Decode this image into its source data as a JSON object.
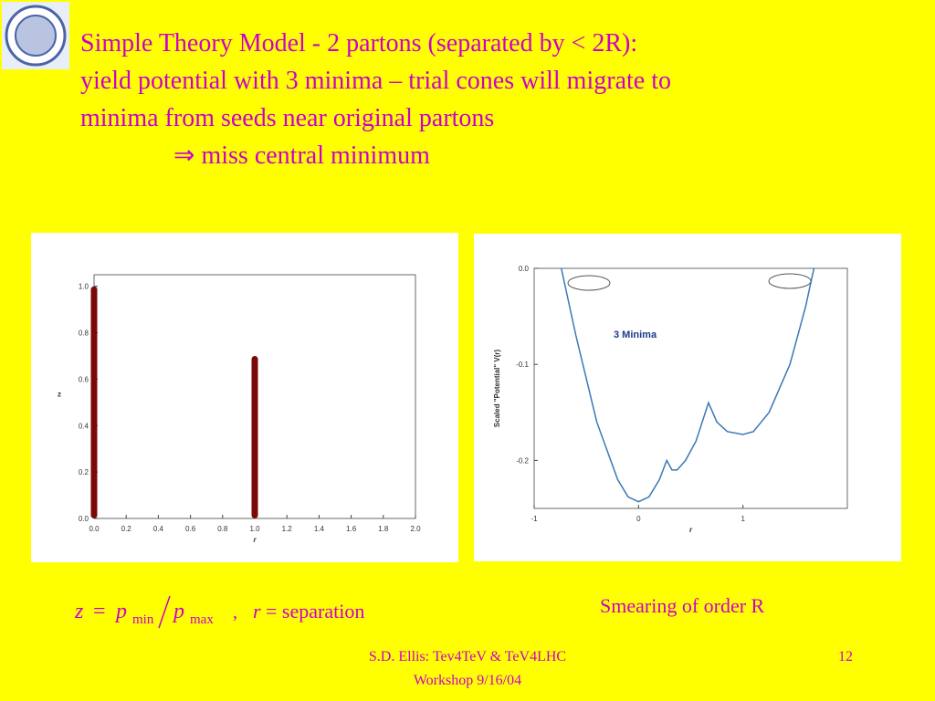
{
  "slide": {
    "title_lines": [
      "Simple Theory Model - 2 partons (separated by < 2R):",
      "yield potential with 3 minima – trial cones will migrate to",
      "minima from seeds near original partons",
      "⇒ miss central minimum"
    ],
    "formula": [
      "z",
      "=",
      "p",
      "min",
      "p",
      "max",
      ",",
      "r",
      "= separation"
    ],
    "caption": "Smearing of order R",
    "footer": [
      "S.D. Ellis: Tev4TeV & TeV4LHC",
      "Workshop  9/16/04"
    ],
    "page_number": "12"
  },
  "chart_data": [
    {
      "type": "bar",
      "x": [
        0,
        1
      ],
      "values": [
        1.0,
        0.7
      ],
      "color": "#7a0a0a",
      "xlabel": "r",
      "ylabel": "z",
      "xlim": [
        0,
        2
      ],
      "xticks": [
        {
          "value": 0,
          "label": "0.0"
        },
        {
          "value": 0.2,
          "label": "0.2"
        },
        {
          "value": 0.4,
          "label": "0.4"
        },
        {
          "value": 0.6,
          "label": "0.6"
        },
        {
          "value": 0.8,
          "label": "0.8"
        },
        {
          "value": 1,
          "label": "1.0"
        },
        {
          "value": 1.2,
          "label": "1.2"
        },
        {
          "value": 1.4,
          "label": "1.4"
        },
        {
          "value": 1.6,
          "label": "1.6"
        },
        {
          "value": 1.8,
          "label": "1.8"
        },
        {
          "value": 2,
          "label": "2.0"
        }
      ],
      "ylim": [
        0,
        1.05
      ],
      "yticks": [
        {
          "value": 0,
          "label": "0.0"
        },
        {
          "value": 0.2,
          "label": "0.2"
        },
        {
          "value": 0.4,
          "label": "0.4"
        },
        {
          "value": 0.6,
          "label": "0.6"
        },
        {
          "value": 0.8,
          "label": "0.8"
        },
        {
          "value": 1,
          "label": "1.0"
        }
      ]
    },
    {
      "type": "line",
      "color": "#3a78b5",
      "xlabel": "r",
      "ylabel": "Scaled \"Potential\" V(r)",
      "annotation": "3 Minima",
      "x": [
        -0.74,
        -0.6,
        -0.4,
        -0.2,
        -0.1,
        0,
        0.1,
        0.2,
        0.27,
        0.32,
        0.37,
        0.45,
        0.55,
        0.67,
        0.75,
        0.85,
        1.0,
        1.1,
        1.25,
        1.45,
        1.6,
        1.68
      ],
      "values": [
        0,
        -0.07,
        -0.16,
        -0.22,
        -0.238,
        -0.243,
        -0.238,
        -0.22,
        -0.2,
        -0.21,
        -0.21,
        -0.2,
        -0.18,
        -0.14,
        -0.16,
        -0.17,
        -0.173,
        -0.17,
        -0.15,
        -0.1,
        -0.04,
        0
      ],
      "xlim": [
        -1,
        2
      ],
      "xticks": [
        -1,
        0,
        1
      ],
      "ylim": [
        -0.25,
        0
      ],
      "yticks": [
        {
          "value": 0,
          "label": "0.0"
        },
        -0.1,
        -0.2
      ]
    }
  ]
}
